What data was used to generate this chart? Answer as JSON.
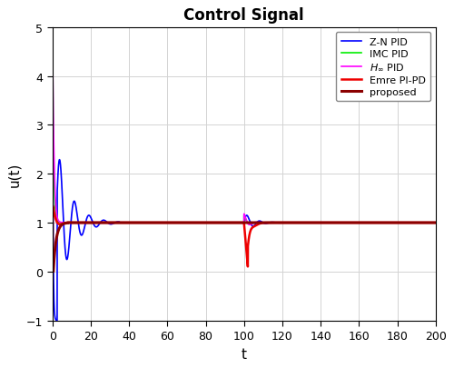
{
  "title": "Control Signal",
  "xlabel": "t",
  "ylabel": "u(t)",
  "xlim": [
    0,
    200
  ],
  "ylim": [
    -1,
    5
  ],
  "yticks": [
    -1,
    0,
    1,
    2,
    3,
    4,
    5
  ],
  "xticks": [
    0,
    20,
    40,
    60,
    80,
    100,
    120,
    140,
    160,
    180,
    200
  ],
  "legend": [
    {
      "label": "Z-N PID",
      "color": "#0000FF",
      "lw": 1.2
    },
    {
      "label": "IMC PID",
      "color": "#00EE00",
      "lw": 1.2
    },
    {
      "label": "H_inf PID",
      "color": "#FF00FF",
      "lw": 1.2
    },
    {
      "label": "Emre PI-PD",
      "color": "#EE0000",
      "lw": 1.8
    },
    {
      "label": "proposed",
      "color": "#8B0000",
      "lw": 2.2
    }
  ],
  "bg_color": "#FFFFFF",
  "grid_color": "#D3D3D3",
  "figsize": [
    5.0,
    4.06
  ],
  "dpi": 100
}
